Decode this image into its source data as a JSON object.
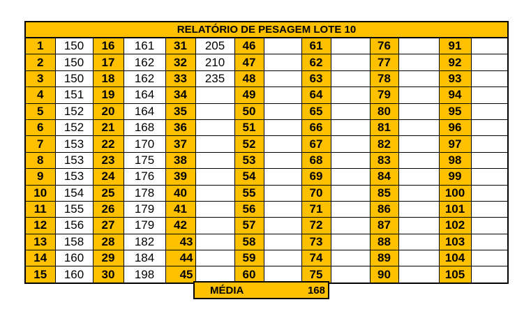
{
  "title": "RELATÓRIO DE PESAGEM LOTE  10",
  "colors": {
    "accent": "#FFC000"
  },
  "weights": {
    "1": "150",
    "2": "150",
    "3": "150",
    "4": "151",
    "5": "152",
    "6": "152",
    "7": "153",
    "8": "153",
    "9": "153",
    "10": "154",
    "11": "155",
    "12": "156",
    "13": "158",
    "14": "160",
    "15": "160",
    "16": "161",
    "17": "162",
    "18": "162",
    "19": "164",
    "20": "164",
    "21": "168",
    "22": "170",
    "23": "175",
    "24": "176",
    "25": "178",
    "26": "179",
    "27": "179",
    "28": "182",
    "29": "184",
    "30": "198",
    "31": "205",
    "32": "210",
    "33": "235"
  },
  "media": {
    "label": "MÉDIA",
    "value": "168"
  }
}
